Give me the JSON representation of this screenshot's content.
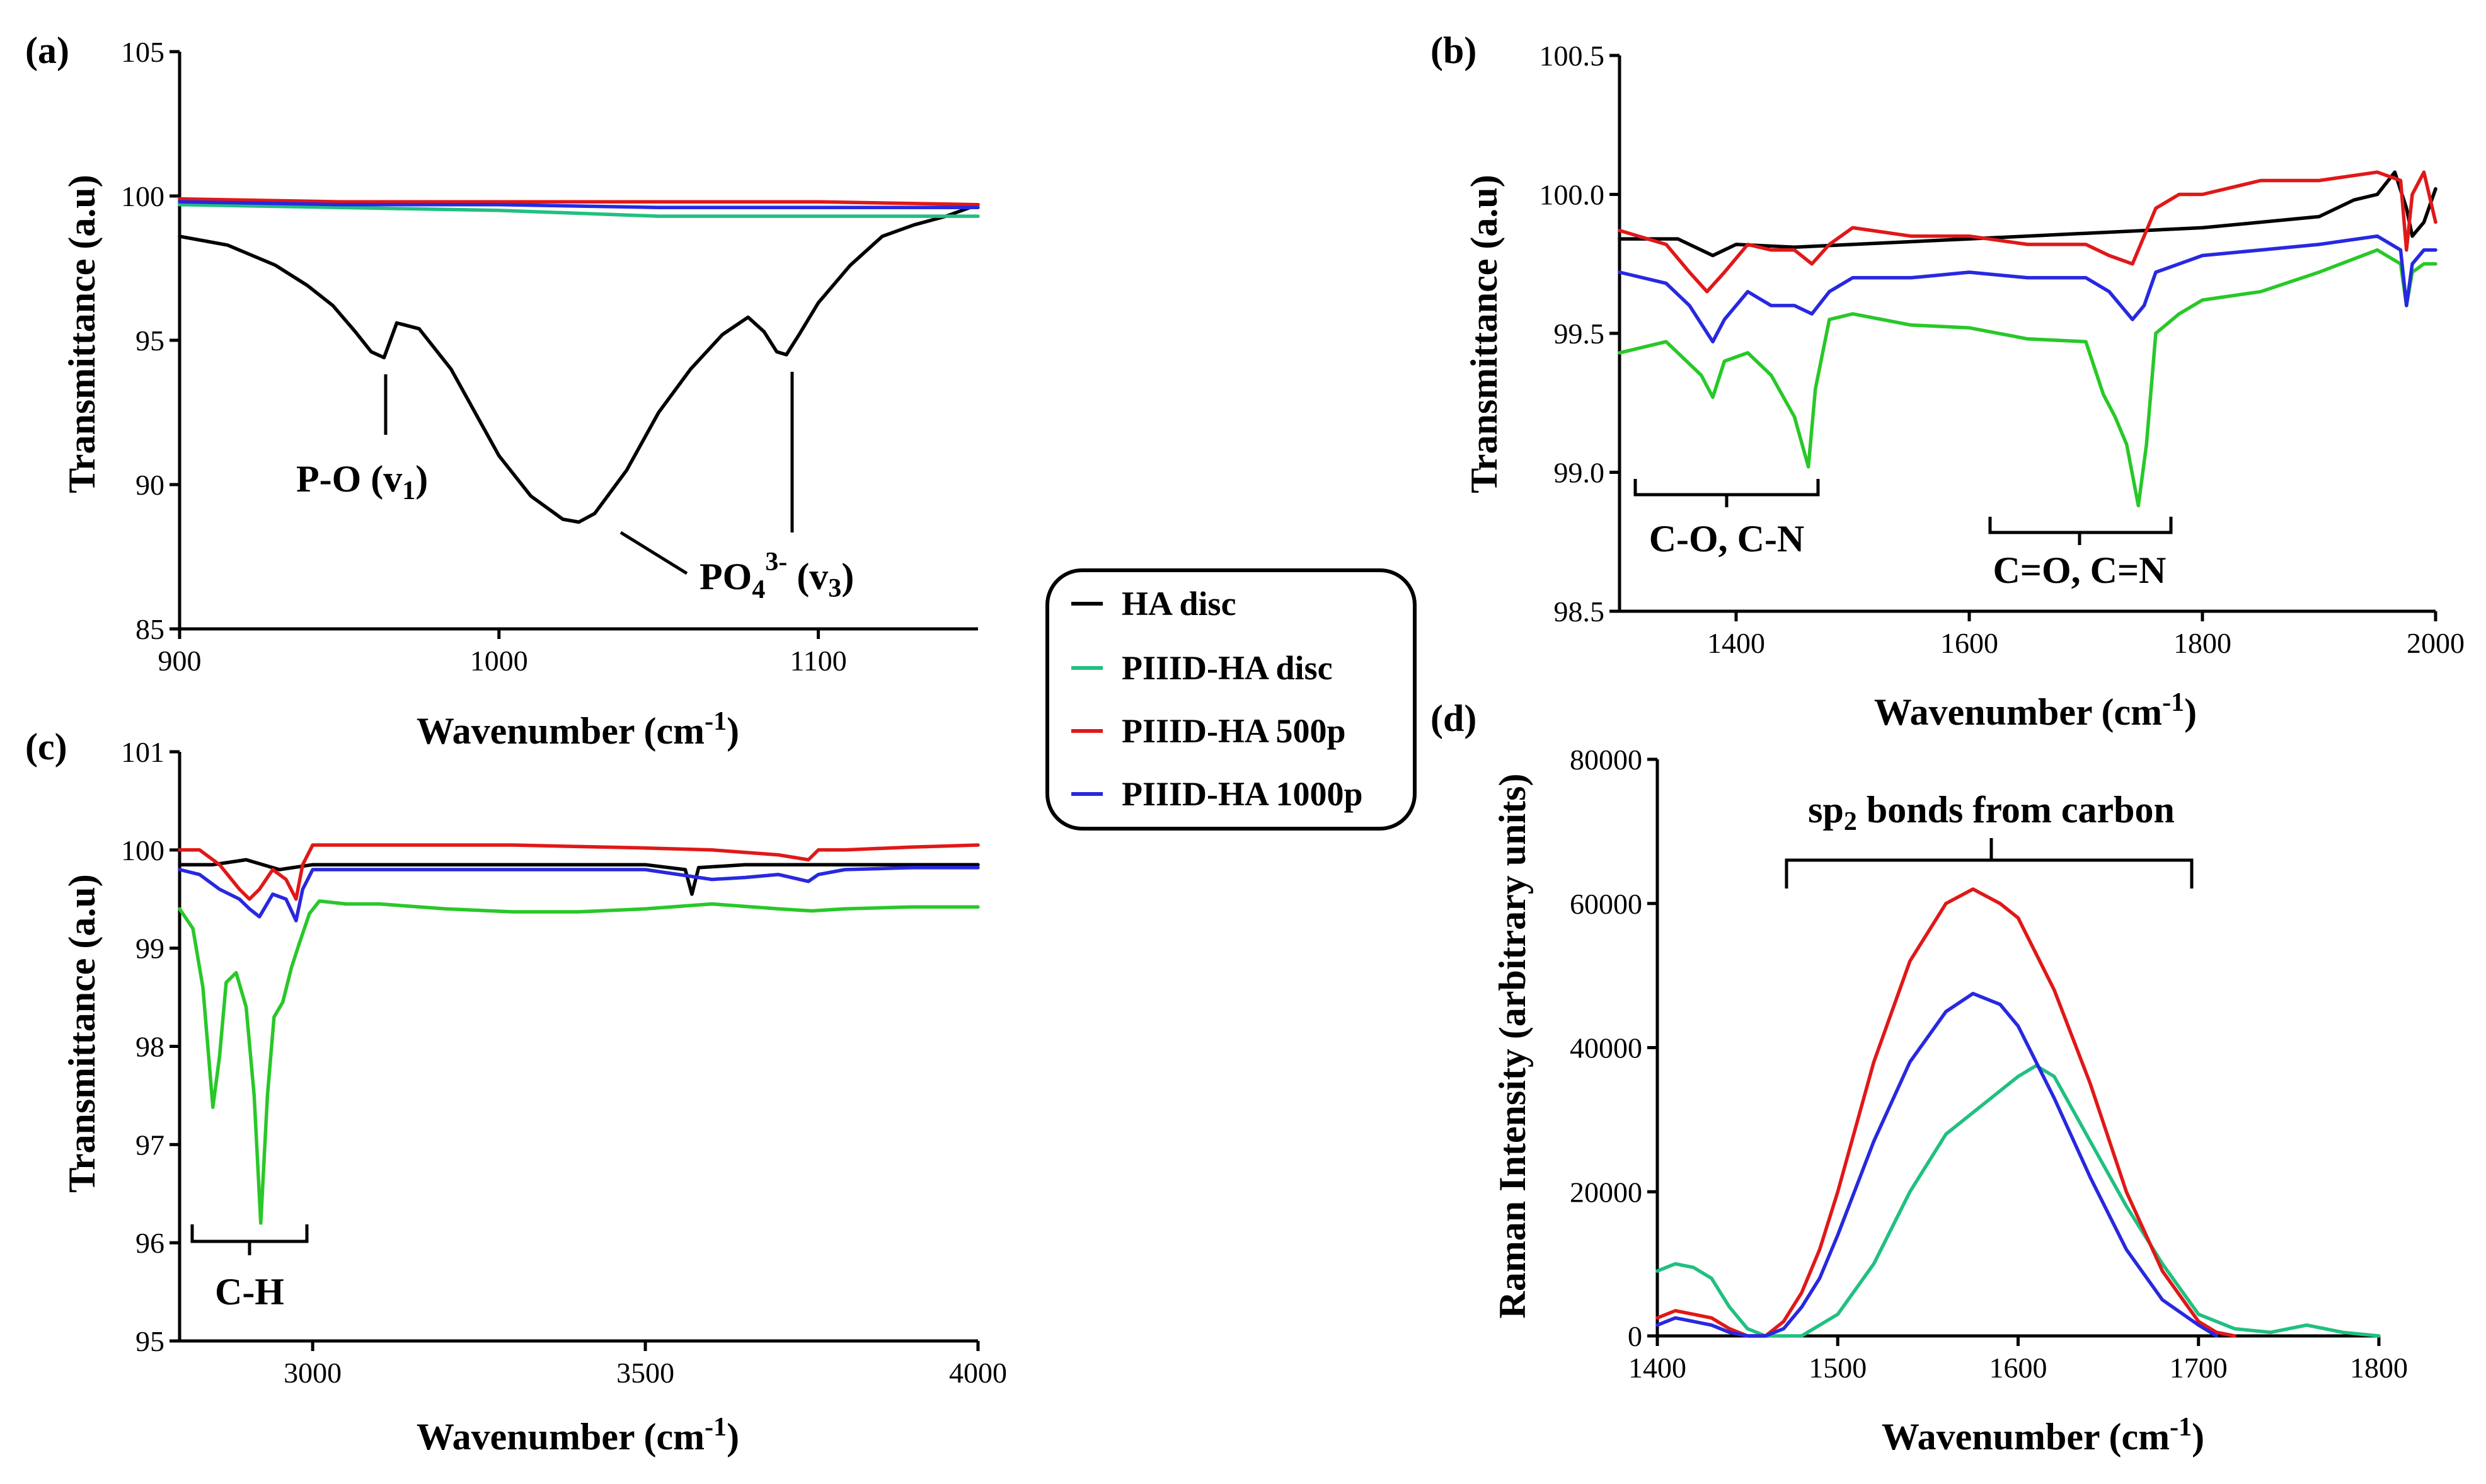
{
  "colors": {
    "HA disc": "#000000",
    "PIIID-HA disc": "#20c080",
    "PIIID-HA 500p": "#e01818",
    "PIIID-HA 1000p": "#2828e0",
    "PIIID-HA disc (b, c)": "#28c828"
  },
  "legend": {
    "entries": [
      "HA disc",
      "PIIID-HA disc",
      "PIIID-HA 500p",
      "PIIID-HA 1000p"
    ]
  },
  "chart_data": [
    {
      "id": "a",
      "panel_label": "(a)",
      "type": "line",
      "xlabel": "Wavenumber (cm-1)",
      "ylabel": "Transmittance (a.u)",
      "xlim": [
        900,
        1150
      ],
      "ylim": [
        85,
        105
      ],
      "xticks": [
        900,
        1000,
        1100
      ],
      "yticks": [
        85,
        90,
        95,
        100,
        105
      ],
      "annotations": [
        "P-O (v1)",
        "PO4 3- (v3)"
      ],
      "series": [
        {
          "name": "HA disc",
          "x": [
            900,
            915,
            930,
            940,
            948,
            955,
            960,
            964,
            968,
            975,
            985,
            1000,
            1010,
            1020,
            1025,
            1030,
            1040,
            1050,
            1060,
            1070,
            1078,
            1083,
            1087,
            1090,
            1094,
            1100,
            1110,
            1120,
            1130,
            1140,
            1150
          ],
          "y": [
            98.6,
            98.3,
            97.6,
            96.9,
            96.2,
            95.3,
            94.6,
            94.4,
            95.6,
            95.4,
            94.0,
            91.0,
            89.6,
            88.8,
            88.7,
            89.0,
            90.5,
            92.5,
            94.0,
            95.2,
            95.8,
            95.3,
            94.6,
            94.5,
            95.2,
            96.3,
            97.6,
            98.6,
            99.0,
            99.3,
            99.7
          ]
        },
        {
          "name": "PIIID-HA disc",
          "x": [
            900,
            950,
            1000,
            1050,
            1100,
            1150
          ],
          "y": [
            99.7,
            99.6,
            99.5,
            99.3,
            99.3,
            99.3
          ]
        },
        {
          "name": "PIIID-HA 500p",
          "x": [
            900,
            950,
            1000,
            1050,
            1100,
            1150
          ],
          "y": [
            99.9,
            99.8,
            99.8,
            99.8,
            99.8,
            99.7
          ]
        },
        {
          "name": "PIIID-HA 1000p",
          "x": [
            900,
            950,
            1000,
            1050,
            1100,
            1150
          ],
          "y": [
            99.8,
            99.7,
            99.7,
            99.6,
            99.6,
            99.6
          ]
        }
      ]
    },
    {
      "id": "b",
      "panel_label": "(b)",
      "type": "line",
      "xlabel": "Wavenumber (cm-1)",
      "ylabel": "Transmittance (a.u)",
      "xlim": [
        1300,
        2000
      ],
      "ylim": [
        98.5,
        100.5
      ],
      "xticks": [
        1400,
        1600,
        1800,
        2000
      ],
      "yticks": [
        98.5,
        99.0,
        99.5,
        100.0,
        100.5
      ],
      "annotations": [
        "C-O, C-N",
        "C=O, C=N"
      ],
      "series": [
        {
          "name": "HA disc",
          "x": [
            1300,
            1350,
            1380,
            1400,
            1450,
            1500,
            1600,
            1700,
            1800,
            1900,
            1930,
            1950,
            1965,
            1975,
            1980,
            1990,
            2000
          ],
          "y": [
            99.84,
            99.84,
            99.78,
            99.82,
            99.81,
            99.82,
            99.84,
            99.86,
            99.88,
            99.92,
            99.98,
            100.0,
            100.08,
            99.95,
            99.85,
            99.9,
            100.02
          ]
        },
        {
          "name": "PIIID-HA disc",
          "x": [
            1300,
            1340,
            1370,
            1380,
            1390,
            1410,
            1430,
            1450,
            1462,
            1468,
            1480,
            1500,
            1550,
            1600,
            1650,
            1700,
            1715,
            1725,
            1735,
            1745,
            1752,
            1760,
            1780,
            1800,
            1850,
            1900,
            1950,
            1970,
            1975,
            1980,
            1990,
            2000
          ],
          "y": [
            99.43,
            99.47,
            99.35,
            99.27,
            99.4,
            99.43,
            99.35,
            99.2,
            99.02,
            99.3,
            99.55,
            99.57,
            99.53,
            99.52,
            99.48,
            99.47,
            99.28,
            99.2,
            99.1,
            98.88,
            99.1,
            99.5,
            99.57,
            99.62,
            99.65,
            99.72,
            99.8,
            99.75,
            99.6,
            99.72,
            99.75,
            99.75
          ]
        },
        {
          "name": "PIIID-HA 500p",
          "x": [
            1300,
            1340,
            1360,
            1375,
            1390,
            1410,
            1430,
            1450,
            1465,
            1480,
            1500,
            1550,
            1600,
            1650,
            1700,
            1720,
            1740,
            1750,
            1760,
            1780,
            1800,
            1850,
            1900,
            1950,
            1970,
            1975,
            1980,
            1990,
            2000
          ],
          "y": [
            99.87,
            99.82,
            99.72,
            99.65,
            99.72,
            99.82,
            99.8,
            99.8,
            99.75,
            99.82,
            99.88,
            99.85,
            99.85,
            99.82,
            99.82,
            99.78,
            99.75,
            99.85,
            99.95,
            100.0,
            100.0,
            100.05,
            100.05,
            100.08,
            100.05,
            99.8,
            100.0,
            100.08,
            99.9
          ]
        },
        {
          "name": "PIIID-HA 1000p",
          "x": [
            1300,
            1340,
            1360,
            1380,
            1390,
            1410,
            1430,
            1450,
            1465,
            1480,
            1500,
            1550,
            1600,
            1650,
            1700,
            1720,
            1740,
            1750,
            1760,
            1780,
            1800,
            1850,
            1900,
            1950,
            1970,
            1975,
            1980,
            1990,
            2000
          ],
          "y": [
            99.72,
            99.68,
            99.6,
            99.47,
            99.55,
            99.65,
            99.6,
            99.6,
            99.57,
            99.65,
            99.7,
            99.7,
            99.72,
            99.7,
            99.7,
            99.65,
            99.55,
            99.6,
            99.72,
            99.75,
            99.78,
            99.8,
            99.82,
            99.85,
            99.8,
            99.6,
            99.75,
            99.8,
            99.8
          ]
        }
      ]
    },
    {
      "id": "c",
      "panel_label": "(c)",
      "type": "line",
      "xlabel": "Wavenumber (cm-1)",
      "ylabel": "Transmittance (a.u)",
      "xlim": [
        2800,
        4000
      ],
      "ylim": [
        95,
        101
      ],
      "xticks": [
        3000,
        3500,
        4000
      ],
      "yticks": [
        95,
        96,
        97,
        98,
        99,
        100,
        101
      ],
      "annotations": [
        "C-H"
      ],
      "series": [
        {
          "name": "HA disc",
          "x": [
            2800,
            2850,
            2900,
            2950,
            3000,
            3100,
            3300,
            3500,
            3560,
            3570,
            3580,
            3650,
            3800,
            4000
          ],
          "y": [
            99.85,
            99.85,
            99.9,
            99.8,
            99.85,
            99.85,
            99.85,
            99.85,
            99.8,
            99.55,
            99.82,
            99.85,
            99.85,
            99.85
          ]
        },
        {
          "name": "PIIID-HA disc",
          "x": [
            2800,
            2820,
            2835,
            2850,
            2860,
            2870,
            2885,
            2900,
            2912,
            2922,
            2932,
            2942,
            2955,
            2968,
            2980,
            2995,
            3010,
            3050,
            3100,
            3200,
            3300,
            3400,
            3500,
            3600,
            3700,
            3750,
            3800,
            3900,
            4000
          ],
          "y": [
            99.4,
            99.2,
            98.6,
            97.38,
            97.9,
            98.65,
            98.75,
            98.4,
            97.5,
            96.2,
            97.5,
            98.3,
            98.45,
            98.8,
            99.05,
            99.35,
            99.48,
            99.45,
            99.45,
            99.4,
            99.37,
            99.37,
            99.4,
            99.45,
            99.4,
            99.38,
            99.4,
            99.42,
            99.42
          ]
        },
        {
          "name": "PIIID-HA 500p",
          "x": [
            2800,
            2830,
            2860,
            2890,
            2905,
            2920,
            2940,
            2960,
            2975,
            2985,
            3000,
            3100,
            3300,
            3500,
            3600,
            3700,
            3745,
            3760,
            3800,
            3900,
            4000
          ],
          "y": [
            100.0,
            100.0,
            99.85,
            99.6,
            99.5,
            99.6,
            99.8,
            99.7,
            99.5,
            99.85,
            100.05,
            100.05,
            100.05,
            100.02,
            100.0,
            99.95,
            99.9,
            100.0,
            100.0,
            100.03,
            100.05
          ]
        },
        {
          "name": "PIIID-HA 1000p",
          "x": [
            2800,
            2830,
            2860,
            2890,
            2905,
            2920,
            2940,
            2960,
            2975,
            2985,
            3000,
            3100,
            3300,
            3500,
            3600,
            3650,
            3700,
            3745,
            3760,
            3800,
            3900,
            4000
          ],
          "y": [
            99.8,
            99.75,
            99.6,
            99.5,
            99.4,
            99.32,
            99.55,
            99.5,
            99.28,
            99.6,
            99.8,
            99.8,
            99.8,
            99.8,
            99.7,
            99.72,
            99.75,
            99.68,
            99.75,
            99.8,
            99.82,
            99.82
          ]
        }
      ]
    },
    {
      "id": "d",
      "panel_label": "(d)",
      "type": "line",
      "xlabel": "Wavenumber (cm-1)",
      "ylabel": "Raman Intensity (arbitrary units)",
      "xlim": [
        1400,
        1800
      ],
      "ylim": [
        0,
        80000
      ],
      "xticks": [
        1400,
        1500,
        1600,
        1700,
        1800
      ],
      "yticks": [
        0,
        20000,
        40000,
        60000,
        80000
      ],
      "annotations": [
        "sp2 bonds from carbon"
      ],
      "series": [
        {
          "name": "PIIID-HA disc",
          "x": [
            1400,
            1410,
            1420,
            1430,
            1440,
            1450,
            1460,
            1470,
            1480,
            1500,
            1520,
            1540,
            1560,
            1580,
            1600,
            1610,
            1620,
            1640,
            1660,
            1680,
            1700,
            1720,
            1740,
            1760,
            1780,
            1800
          ],
          "y": [
            9000,
            10000,
            9500,
            8000,
            4000,
            1000,
            0,
            0,
            0,
            3000,
            10000,
            20000,
            28000,
            32000,
            36000,
            37500,
            36000,
            27000,
            18000,
            10000,
            3000,
            1000,
            500,
            1500,
            500,
            0
          ]
        },
        {
          "name": "PIIID-HA 500p",
          "x": [
            1400,
            1410,
            1420,
            1430,
            1440,
            1450,
            1460,
            1470,
            1480,
            1490,
            1500,
            1520,
            1540,
            1560,
            1575,
            1590,
            1600,
            1620,
            1640,
            1660,
            1680,
            1700,
            1710,
            1720
          ],
          "y": [
            2500,
            3500,
            3000,
            2500,
            1000,
            0,
            0,
            2000,
            6000,
            12000,
            20000,
            38000,
            52000,
            60000,
            62000,
            60000,
            58000,
            48000,
            35000,
            20000,
            9000,
            2000,
            500,
            0
          ]
        },
        {
          "name": "PIIID-HA 1000p",
          "x": [
            1400,
            1410,
            1420,
            1430,
            1440,
            1450,
            1460,
            1470,
            1480,
            1490,
            1500,
            1520,
            1540,
            1560,
            1575,
            1590,
            1600,
            1620,
            1640,
            1660,
            1680,
            1700,
            1710
          ],
          "y": [
            1500,
            2500,
            2000,
            1500,
            500,
            0,
            0,
            1000,
            4000,
            8000,
            14000,
            27000,
            38000,
            45000,
            47500,
            46000,
            43000,
            33000,
            22000,
            12000,
            5000,
            1500,
            0
          ]
        }
      ]
    }
  ]
}
